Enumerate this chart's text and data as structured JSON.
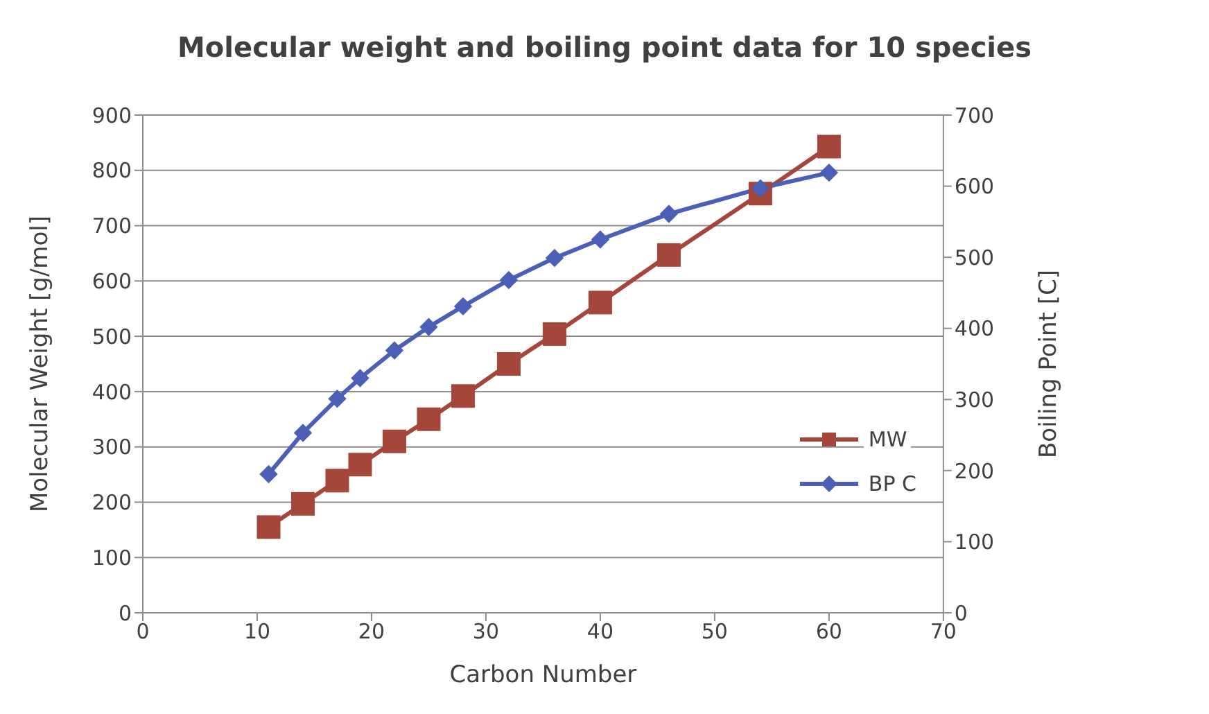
{
  "chart_data": {
    "type": "line",
    "title": "Molecular weight and boiling point data for 10 species",
    "xlabel": "Carbon Number",
    "ylabel": "Molecular Weight [g/mol]",
    "y2label": "Boiling Point [C]",
    "x": [
      11,
      14,
      17,
      19,
      22,
      25,
      28,
      32,
      36,
      40,
      46,
      54,
      60
    ],
    "series": [
      {
        "name": "MW",
        "color": "#a5463b",
        "marker": "square",
        "values": [
          155,
          197,
          239,
          268,
          310,
          350,
          392,
          450,
          504,
          561,
          647,
          758,
          843
        ]
      },
      {
        "name": "BP C",
        "color": "#4a5fb5",
        "marker": "diamond",
        "axis": "y2",
        "values": [
          195,
          253,
          301,
          330,
          369,
          402,
          431,
          468,
          499,
          525,
          561,
          597,
          619
        ]
      }
    ],
    "xlim": [
      0,
      70
    ],
    "xticks": [
      0,
      10,
      20,
      30,
      40,
      50,
      60,
      70
    ],
    "ylim": [
      0,
      900
    ],
    "yticks": [
      0,
      100,
      200,
      300,
      400,
      500,
      600,
      700,
      800,
      900
    ],
    "y2lim": [
      0,
      700
    ],
    "y2ticks": [
      0,
      100,
      200,
      300,
      400,
      500,
      600,
      700
    ],
    "grid": "y",
    "legend": "right"
  }
}
